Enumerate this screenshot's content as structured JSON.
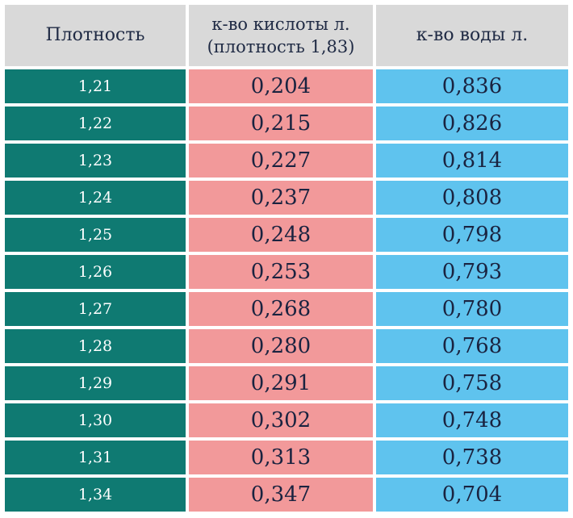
{
  "table": {
    "headers": {
      "density": "Плотность",
      "acid_line1": "к-во кислоты л.",
      "acid_line2": "(плотность 1,83)",
      "water": "к-во воды л."
    },
    "rows": [
      {
        "density": "1,21",
        "acid": "0,204",
        "water": "0,836"
      },
      {
        "density": "1,22",
        "acid": "0,215",
        "water": "0,826"
      },
      {
        "density": "1,23",
        "acid": "0,227",
        "water": "0,814"
      },
      {
        "density": "1,24",
        "acid": "0,237",
        "water": "0,808"
      },
      {
        "density": "1,25",
        "acid": "0,248",
        "water": "0,798"
      },
      {
        "density": "1,26",
        "acid": "0,253",
        "water": "0,793"
      },
      {
        "density": "1,27",
        "acid": "0,268",
        "water": "0,780"
      },
      {
        "density": "1,28",
        "acid": "0,280",
        "water": "0,768"
      },
      {
        "density": "1,29",
        "acid": "0,291",
        "water": "0,758"
      },
      {
        "density": "1,30",
        "acid": "0,302",
        "water": "0,748"
      },
      {
        "density": "1,31",
        "acid": "0,313",
        "water": "0,738"
      },
      {
        "density": "1,34",
        "acid": "0,347",
        "water": "0,704"
      }
    ]
  },
  "colors": {
    "header_bg": "#d9d9d9",
    "density_bg": "#0f7a72",
    "acid_bg": "#f2999a",
    "water_bg": "#5fc3ee"
  }
}
